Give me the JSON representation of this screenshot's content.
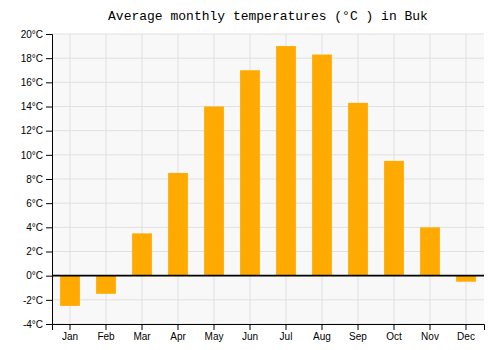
{
  "chart_data": {
    "type": "bar",
    "title": "Average monthly temperatures (°C ) in Buk",
    "categories": [
      "Jan",
      "Feb",
      "Mar",
      "Apr",
      "May",
      "Jun",
      "Jul",
      "Aug",
      "Sep",
      "Oct",
      "Nov",
      "Dec"
    ],
    "values": [
      -2.5,
      -1.5,
      3.5,
      8.5,
      14.0,
      17.0,
      19.0,
      18.3,
      14.3,
      9.5,
      4.0,
      -0.5
    ],
    "color": "#FFAA00",
    "ylim": [
      -4,
      20
    ],
    "yticks": [
      {
        "value": -4,
        "label": "-4°C"
      },
      {
        "value": -2,
        "label": "-2°C"
      },
      {
        "value": 0,
        "label": "0°C"
      },
      {
        "value": 2,
        "label": "2°C"
      },
      {
        "value": 4,
        "label": "4°C"
      },
      {
        "value": 6,
        "label": "6°C"
      },
      {
        "value": 8,
        "label": "8°C"
      },
      {
        "value": 10,
        "label": "10°C"
      },
      {
        "value": 12,
        "label": "12°C"
      },
      {
        "value": 14,
        "label": "14°C"
      },
      {
        "value": 16,
        "label": "16°C"
      },
      {
        "value": 18,
        "label": "18°C"
      },
      {
        "value": 20,
        "label": "20°C"
      }
    ],
    "grid": true
  }
}
